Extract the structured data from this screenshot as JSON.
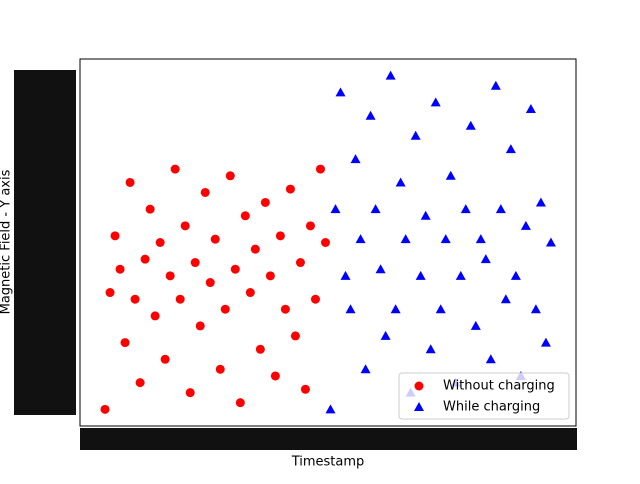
{
  "chart_data": {
    "type": "scatter",
    "xlabel": "Timestamp",
    "ylabel": "Magnetic Field - Y axis",
    "legend": "lower right",
    "xlim": [
      -5,
      94
    ],
    "ylim": [
      -5,
      105
    ],
    "series": [
      {
        "name": "Without charging",
        "color": "#ff0000",
        "marker": "circle",
        "x": [
          0,
          1,
          2,
          3,
          4,
          5,
          6,
          7,
          8,
          9,
          10,
          11,
          12,
          13,
          14,
          15,
          16,
          17,
          18,
          19,
          20,
          21,
          22,
          23,
          24,
          25,
          26,
          27,
          28,
          29,
          30,
          31,
          32,
          33,
          34,
          35,
          36,
          37,
          38,
          39,
          40,
          41,
          42,
          43,
          44
        ],
        "values": [
          0,
          35,
          52,
          42,
          20,
          68,
          33,
          8,
          45,
          60,
          28,
          50,
          15,
          40,
          72,
          33,
          55,
          5,
          44,
          25,
          65,
          38,
          51,
          12,
          30,
          70,
          42,
          2,
          58,
          35,
          48,
          18,
          62,
          40,
          10,
          52,
          30,
          66,
          22,
          44,
          6,
          55,
          33,
          72,
          50
        ]
      },
      {
        "name": "While charging",
        "color": "#0000ff",
        "marker": "triangle",
        "x": [
          45,
          46,
          47,
          48,
          49,
          50,
          51,
          52,
          53,
          54,
          55,
          56,
          57,
          58,
          59,
          60,
          61,
          62,
          63,
          64,
          65,
          66,
          67,
          68,
          69,
          70,
          71,
          72,
          73,
          74,
          75,
          76,
          77,
          78,
          79,
          80,
          81,
          82,
          83,
          84,
          85,
          86,
          87,
          88,
          89
        ],
        "values": [
          0,
          60,
          95,
          40,
          30,
          75,
          51,
          12,
          88,
          60,
          42,
          22,
          100,
          30,
          68,
          51,
          5,
          82,
          40,
          58,
          18,
          92,
          30,
          51,
          70,
          8,
          40,
          60,
          85,
          25,
          51,
          45,
          15,
          97,
          60,
          33,
          78,
          40,
          10,
          55,
          90,
          30,
          62,
          20,
          50
        ]
      }
    ]
  }
}
